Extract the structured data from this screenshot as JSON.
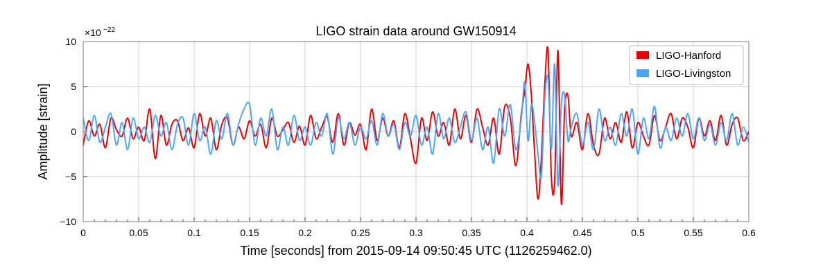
{
  "chart_data": {
    "type": "line",
    "title": "LIGO strain data around GW150914",
    "xlabel": "Time [seconds] from 2015-09-14 09:50:45 UTC (1126259462.0)",
    "ylabel": "Amplitude [strain]",
    "y_scale_label": "×10",
    "y_scale_exponent": "−22",
    "xlim": [
      0,
      0.6
    ],
    "ylim": [
      -10,
      10
    ],
    "x_ticks": [
      0,
      0.05,
      0.1,
      0.15,
      0.2,
      0.25,
      0.3,
      0.35,
      0.4,
      0.45,
      0.5,
      0.55,
      0.6
    ],
    "x_tick_labels": [
      "0",
      "0.05",
      "0.1",
      "0.15",
      "0.2",
      "0.25",
      "0.3",
      "0.35",
      "0.4",
      "0.45",
      "0.5",
      "0.55",
      "0.6"
    ],
    "y_ticks": [
      -10,
      -5,
      0,
      5,
      10
    ],
    "y_tick_labels": [
      "−10",
      "−5",
      "0",
      "5",
      "10"
    ],
    "grid": true,
    "legend_position": "top-right",
    "series": [
      {
        "name": "LIGO-Hanford",
        "color": "#ee0000",
        "x": [
          0,
          0.005,
          0.01,
          0.015,
          0.02,
          0.025,
          0.03,
          0.035,
          0.04,
          0.045,
          0.05,
          0.055,
          0.06,
          0.065,
          0.07,
          0.075,
          0.08,
          0.085,
          0.09,
          0.095,
          0.1,
          0.105,
          0.11,
          0.115,
          0.12,
          0.125,
          0.13,
          0.135,
          0.14,
          0.145,
          0.15,
          0.155,
          0.16,
          0.165,
          0.17,
          0.175,
          0.18,
          0.185,
          0.19,
          0.195,
          0.2,
          0.205,
          0.21,
          0.215,
          0.22,
          0.225,
          0.23,
          0.235,
          0.24,
          0.245,
          0.25,
          0.255,
          0.26,
          0.265,
          0.27,
          0.275,
          0.28,
          0.285,
          0.29,
          0.295,
          0.3,
          0.305,
          0.31,
          0.315,
          0.32,
          0.325,
          0.33,
          0.335,
          0.34,
          0.345,
          0.35,
          0.355,
          0.36,
          0.365,
          0.37,
          0.375,
          0.38,
          0.385,
          0.39,
          0.395,
          0.398,
          0.401,
          0.404,
          0.407,
          0.41,
          0.413,
          0.416,
          0.419,
          0.422,
          0.425,
          0.428,
          0.431,
          0.434,
          0.437,
          0.44,
          0.445,
          0.45,
          0.455,
          0.46,
          0.465,
          0.47,
          0.475,
          0.48,
          0.485,
          0.49,
          0.495,
          0.5,
          0.505,
          0.51,
          0.515,
          0.52,
          0.525,
          0.53,
          0.535,
          0.54,
          0.545,
          0.55,
          0.555,
          0.56,
          0.565,
          0.57,
          0.575,
          0.58,
          0.585,
          0.59,
          0.595,
          0.6
        ],
        "y": [
          -1.5,
          1.2,
          -0.5,
          0.8,
          -1.8,
          1.5,
          0.2,
          -0.5,
          1.5,
          -0.8,
          0.5,
          -1.0,
          2.5,
          -3.0,
          1.8,
          -1.5,
          0.8,
          1.2,
          -1.0,
          0.4,
          -1.8,
          2.0,
          -0.5,
          1.5,
          -2.0,
          0.8,
          1.5,
          -1.5,
          0.5,
          -0.8,
          1.2,
          -0.5,
          0.8,
          -1.8,
          1.5,
          -0.5,
          0.2,
          1.0,
          -1.2,
          0.6,
          -1.5,
          1.8,
          -0.8,
          0.5,
          1.6,
          -1.2,
          2.0,
          -1.5,
          1.0,
          -0.4,
          0.8,
          -2.0,
          2.5,
          -1.0,
          1.5,
          -0.5,
          1.2,
          -1.8,
          2.0,
          -0.8,
          -3.5,
          1.5,
          -1.0,
          2.2,
          -0.5,
          1.0,
          -1.5,
          2.5,
          -0.8,
          1.8,
          -1.2,
          2.5,
          0.5,
          -1.5,
          1.5,
          -2.5,
          2.8,
          1.5,
          -3.8,
          2.0,
          4.5,
          7.5,
          4.0,
          -2.5,
          -7.5,
          -3.0,
          5.0,
          9.0,
          -5.0,
          -5.5,
          9.0,
          -8.0,
          2.5,
          4.0,
          -0.5,
          1.0,
          -2.0,
          2.0,
          -1.5,
          -2.5,
          1.5,
          -0.8,
          1.0,
          -1.2,
          2.2,
          -1.8,
          1.0,
          -0.5,
          -1.5,
          1.8,
          -1.0,
          0.5,
          2.0,
          -0.8,
          1.5,
          0.5,
          -1.8,
          1.5,
          -0.5,
          1.2,
          -1.0,
          1.8,
          -1.5,
          0.8,
          1.5,
          -1.0,
          0.0
        ]
      },
      {
        "name": "LIGO-Livingston",
        "color": "#4ba6ff",
        "x": [
          0,
          0.005,
          0.01,
          0.015,
          0.02,
          0.025,
          0.03,
          0.035,
          0.04,
          0.045,
          0.05,
          0.055,
          0.06,
          0.065,
          0.07,
          0.075,
          0.08,
          0.085,
          0.09,
          0.095,
          0.1,
          0.105,
          0.11,
          0.115,
          0.12,
          0.125,
          0.13,
          0.135,
          0.14,
          0.145,
          0.15,
          0.155,
          0.16,
          0.165,
          0.17,
          0.175,
          0.18,
          0.185,
          0.19,
          0.195,
          0.2,
          0.205,
          0.21,
          0.215,
          0.22,
          0.225,
          0.23,
          0.235,
          0.24,
          0.245,
          0.25,
          0.255,
          0.26,
          0.265,
          0.27,
          0.275,
          0.28,
          0.285,
          0.29,
          0.295,
          0.3,
          0.305,
          0.31,
          0.315,
          0.32,
          0.325,
          0.33,
          0.335,
          0.34,
          0.345,
          0.35,
          0.355,
          0.36,
          0.365,
          0.37,
          0.375,
          0.38,
          0.385,
          0.39,
          0.395,
          0.398,
          0.401,
          0.404,
          0.407,
          0.41,
          0.413,
          0.416,
          0.419,
          0.422,
          0.425,
          0.428,
          0.431,
          0.434,
          0.437,
          0.44,
          0.445,
          0.45,
          0.455,
          0.46,
          0.465,
          0.47,
          0.475,
          0.48,
          0.485,
          0.49,
          0.495,
          0.5,
          0.505,
          0.51,
          0.515,
          0.52,
          0.525,
          0.53,
          0.535,
          0.54,
          0.545,
          0.55,
          0.555,
          0.56,
          0.565,
          0.57,
          0.575,
          0.58,
          0.585,
          0.59,
          0.595,
          0.6
        ],
        "y": [
          1.5,
          -1.0,
          1.8,
          -1.2,
          0.5,
          2.0,
          -1.5,
          1.0,
          -2.0,
          1.5,
          -0.8,
          0.5,
          -1.2,
          1.8,
          -0.5,
          1.0,
          -2.0,
          0.8,
          1.5,
          -1.5,
          2.0,
          -1.0,
          0.5,
          -2.5,
          1.2,
          -0.8,
          2.0,
          -1.5,
          0.8,
          2.5,
          3.0,
          -1.5,
          1.5,
          -0.5,
          2.5,
          -2.0,
          0.5,
          -1.5,
          1.8,
          -1.0,
          0.5,
          -1.5,
          1.0,
          -0.5,
          2.0,
          -2.5,
          1.5,
          -0.8,
          1.0,
          -1.5,
          0.5,
          -0.8,
          1.2,
          -1.5,
          2.0,
          -0.5,
          0.8,
          -2.0,
          1.0,
          -0.5,
          1.8,
          -1.5,
          0.5,
          -2.5,
          2.0,
          -0.8,
          1.5,
          -1.2,
          0.5,
          2.2,
          -1.0,
          1.5,
          -2.0,
          0.5,
          -3.5,
          2.5,
          -0.5,
          3.0,
          -2.0,
          1.5,
          5.5,
          -1.0,
          3.0,
          1.0,
          -2.5,
          -5.0,
          3.5,
          6.0,
          -2.0,
          7.5,
          -6.0,
          3.0,
          4.0,
          -1.0,
          0.5,
          2.0,
          -1.5,
          1.0,
          -2.0,
          2.5,
          -1.0,
          0.5,
          -1.5,
          2.0,
          -0.5,
          2.5,
          -2.5,
          1.5,
          -0.8,
          2.8,
          -1.8,
          0.5,
          -1.0,
          1.5,
          -0.5,
          2.0,
          -0.8,
          1.5,
          -1.0,
          0.8,
          -1.5,
          1.0,
          -1.0,
          2.0,
          -1.5,
          0.5,
          -1.2
        ]
      }
    ]
  }
}
